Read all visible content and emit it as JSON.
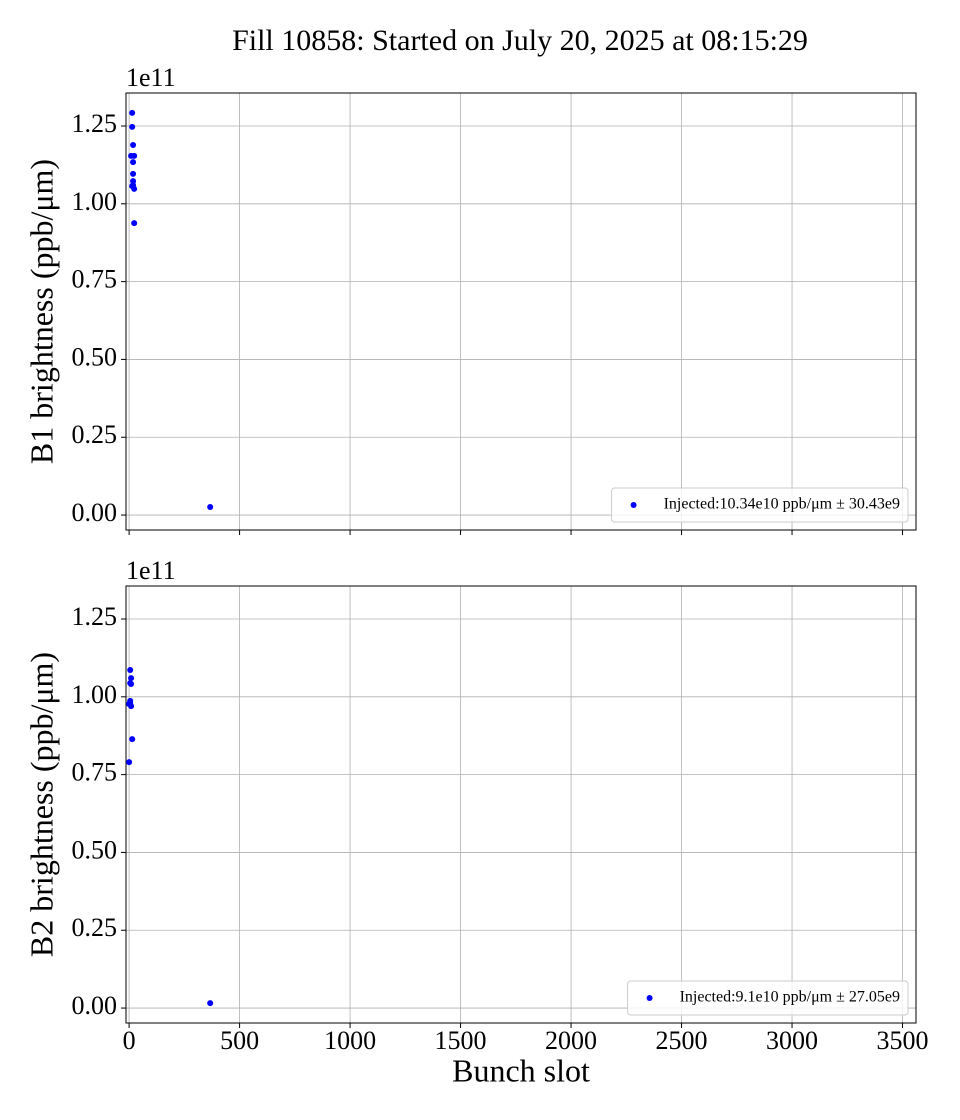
{
  "title": "Fill 10858: Started on July 20, 2025 at 08:15:29",
  "chart_data": [
    {
      "type": "scatter",
      "ylabel": "B1 brightness (ppb/μm)",
      "offset_label": "1e11",
      "xlim": [
        -14,
        3561
      ],
      "xticks": [
        0,
        500,
        1000,
        1500,
        2000,
        2500,
        3000,
        3500
      ],
      "xtick_labels": false,
      "ylim": [
        -0.048,
        1.356
      ],
      "yticks": [
        {
          "value": 0,
          "label": "0.00"
        },
        {
          "value": 0.25,
          "label": "0.25"
        },
        {
          "value": 0.5,
          "label": "0.50"
        },
        {
          "value": 0.75,
          "label": "0.75"
        },
        {
          "value": 1,
          "label": "1.00"
        },
        {
          "value": 1.25,
          "label": "1.25"
        }
      ],
      "grid": true,
      "legend": "lower right",
      "series": [
        {
          "name": "Injected:10.34e10 ppb/μm ± 30.43e9",
          "color": "#0000ff",
          "x": [
            14,
            14,
            18,
            9,
            23,
            18,
            18,
            18,
            18,
            23,
            14,
            23,
            367
          ],
          "values": [
            1.292,
            1.247,
            1.189,
            1.154,
            1.154,
            1.134,
            1.096,
            1.073,
            1.06,
            1.048,
            1.057,
            0.938,
            0.026
          ]
        }
      ]
    },
    {
      "type": "scatter",
      "ylabel": "B2 brightness (ppb/μm)",
      "offset_label": "1e11",
      "xlabel": "Bunch slot",
      "xlim": [
        -14,
        3561
      ],
      "xticks": [
        0,
        500,
        1000,
        1500,
        2000,
        2500,
        3000,
        3500
      ],
      "xtick_labels": true,
      "ylim": [
        -0.048,
        1.356
      ],
      "yticks": [
        {
          "value": 0,
          "label": "0.00"
        },
        {
          "value": 0.25,
          "label": "0.25"
        },
        {
          "value": 0.5,
          "label": "0.50"
        },
        {
          "value": 0.75,
          "label": "0.75"
        },
        {
          "value": 1,
          "label": "1.00"
        },
        {
          "value": 1.25,
          "label": "1.25"
        }
      ],
      "grid": true,
      "legend": "lower right",
      "series": [
        {
          "name": "Injected:9.1e10 ppb/μm ± 27.05e9",
          "color": "#0000ff",
          "x": [
            5,
            9,
            5,
            9,
            5,
            0,
            9,
            5,
            14,
            0,
            367
          ],
          "values": [
            1.086,
            1.06,
            1.044,
            1.041,
            0.987,
            0.977,
            0.97,
            0.98,
            0.864,
            0.79,
            0.016
          ]
        }
      ]
    }
  ]
}
